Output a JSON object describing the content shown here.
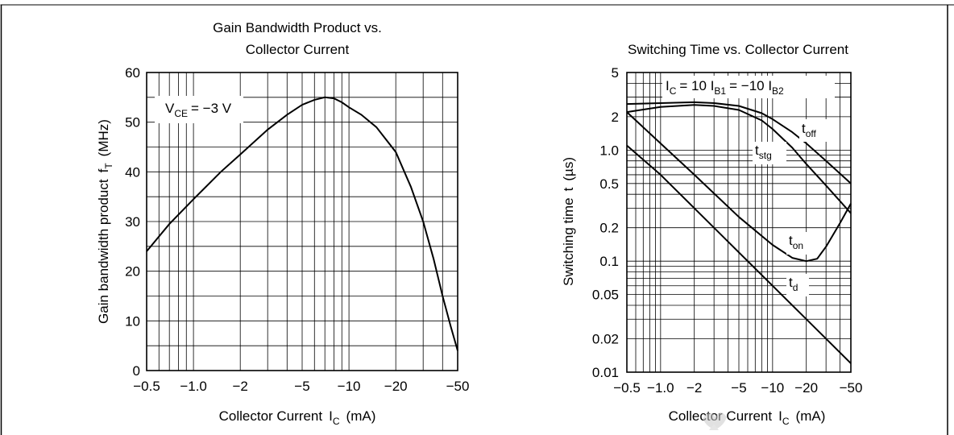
{
  "chart_data": [
    {
      "type": "line",
      "title_line1": "Gain Bandwidth Product vs.",
      "title_line2": "Collector Current",
      "xlabel": "Collector Current",
      "xlabel_symbol": "I",
      "xlabel_sub": "C",
      "xlabel_unit": "(mA)",
      "ylabel": "Gain bandwidth product",
      "ylabel_symbol": "f",
      "ylabel_sub": "T",
      "ylabel_unit": "(MHz)",
      "x_scale": "log",
      "x_magnitude_range": [
        0.5,
        50
      ],
      "ylim": [
        0,
        60
      ],
      "x_ticks": [
        {
          "v": 0.5,
          "label": "−0.5"
        },
        {
          "v": 1,
          "label": "−1.0"
        },
        {
          "v": 2,
          "label": "−2"
        },
        {
          "v": 5,
          "label": "−5"
        },
        {
          "v": 10,
          "label": "−10"
        },
        {
          "v": 20,
          "label": "−20"
        },
        {
          "v": 50,
          "label": "−50"
        }
      ],
      "y_ticks": [
        {
          "v": 0,
          "label": "0"
        },
        {
          "v": 10,
          "label": "10"
        },
        {
          "v": 20,
          "label": "20"
        },
        {
          "v": 30,
          "label": "30"
        },
        {
          "v": 40,
          "label": "40"
        },
        {
          "v": 50,
          "label": "50"
        },
        {
          "v": 60,
          "label": "60"
        }
      ],
      "grid": true,
      "condition": {
        "symbol": "V",
        "sub": "CE",
        "text": "= −3 V"
      },
      "series": [
        {
          "x": [
            0.5,
            0.7,
            1,
            1.5,
            2,
            3,
            4,
            5,
            6,
            7,
            8,
            9,
            10,
            12,
            15,
            20,
            25,
            30,
            35,
            40,
            45,
            50
          ],
          "y": [
            24,
            29.5,
            34.5,
            40,
            43.5,
            48.5,
            51.5,
            53.5,
            54.5,
            55,
            54.8,
            54,
            53,
            51.5,
            49,
            44,
            37,
            30,
            22.5,
            15,
            9,
            4
          ]
        }
      ]
    },
    {
      "type": "line",
      "title": "Switching Time vs. Collector Current",
      "xlabel": "Collector Current",
      "xlabel_symbol": "I",
      "xlabel_sub": "C",
      "xlabel_unit": "(mA)",
      "ylabel": "Switching time",
      "ylabel_symbol": "t",
      "ylabel_unit": "(µs)",
      "x_scale": "log",
      "y_scale": "log",
      "x_magnitude_range": [
        0.5,
        50
      ],
      "ylim": [
        0.01,
        5
      ],
      "x_ticks": [
        {
          "v": 0.5,
          "label": "−0.5"
        },
        {
          "v": 1,
          "label": "−1.0"
        },
        {
          "v": 2,
          "label": "−2"
        },
        {
          "v": 5,
          "label": "−5"
        },
        {
          "v": 10,
          "label": "−10"
        },
        {
          "v": 20,
          "label": "−20"
        },
        {
          "v": 50,
          "label": "−50"
        }
      ],
      "y_ticks": [
        {
          "v": 0.01,
          "label": "0.01"
        },
        {
          "v": 0.02,
          "label": "0.02"
        },
        {
          "v": 0.05,
          "label": "0.05"
        },
        {
          "v": 0.1,
          "label": "0.1"
        },
        {
          "v": 0.2,
          "label": "0.2"
        },
        {
          "v": 0.5,
          "label": "0.5"
        },
        {
          "v": 1,
          "label": "1.0"
        },
        {
          "v": 2,
          "label": "2"
        },
        {
          "v": 5,
          "label": "5"
        }
      ],
      "grid": true,
      "condition": {
        "p1": "I",
        "s1": "C",
        "p2": "= 10 I",
        "s2": "B1",
        "p3": "= −10 I",
        "s3": "B2"
      },
      "series": [
        {
          "name_symbol": "t",
          "name_sub": "off",
          "x": [
            0.5,
            1,
            2,
            3,
            5,
            8,
            10,
            15,
            20,
            30,
            50
          ],
          "y": [
            2.6,
            2.65,
            2.7,
            2.65,
            2.5,
            2.15,
            1.9,
            1.45,
            1.15,
            0.8,
            0.5
          ]
        },
        {
          "name_symbol": "t",
          "name_sub": "stg",
          "x": [
            0.5,
            1,
            2,
            3,
            5,
            8,
            10,
            15,
            20,
            30,
            50
          ],
          "y": [
            2.2,
            2.45,
            2.55,
            2.5,
            2.3,
            1.85,
            1.55,
            1.05,
            0.75,
            0.48,
            0.27
          ]
        },
        {
          "name_symbol": "t",
          "name_sub": "on",
          "x": [
            0.5,
            1,
            2,
            5,
            10,
            15,
            20,
            25,
            30,
            40,
            50
          ],
          "y": [
            2.2,
            1.15,
            0.6,
            0.25,
            0.14,
            0.107,
            0.1,
            0.105,
            0.135,
            0.22,
            0.33
          ]
        },
        {
          "name_symbol": "t",
          "name_sub": "d",
          "x": [
            0.5,
            1,
            2,
            5,
            10,
            20,
            50
          ],
          "y": [
            1.1,
            0.6,
            0.3,
            0.12,
            0.06,
            0.03,
            0.012
          ]
        }
      ]
    }
  ]
}
